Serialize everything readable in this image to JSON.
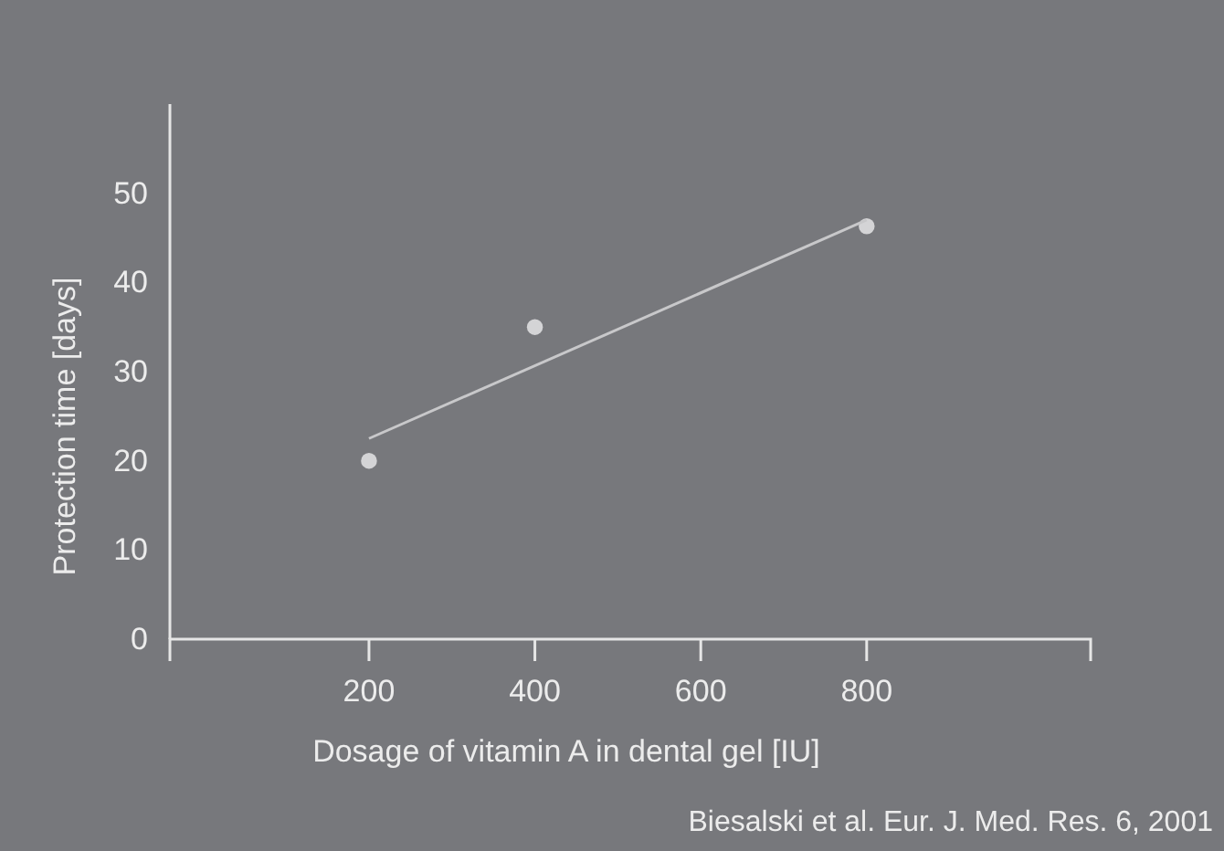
{
  "chart_data": {
    "type": "scatter",
    "xlabel": "Dosage of vitamin A in dental gel [IU]",
    "ylabel": "Protection time [days]",
    "xlim": [
      -40,
      1070
    ],
    "ylim": [
      0,
      60
    ],
    "xticks": [
      200,
      400,
      600,
      800
    ],
    "yticks": [
      0,
      10,
      20,
      30,
      40,
      50
    ],
    "grid": false,
    "marker": "circle",
    "series": [
      {
        "color": "#d4d4d6",
        "x": [
          200,
          400,
          800
        ],
        "values": [
          20,
          35,
          46.3
        ]
      },
      {
        "type": "line",
        "color": "#c8c8ca",
        "x": [
          200,
          800
        ],
        "values": [
          22.5,
          47
        ],
        "marker": "none",
        "line_style": "solid"
      }
    ],
    "annotations": [
      "Biesalski et al. Eur. J. Med. Res. 6, 2001"
    ]
  }
}
